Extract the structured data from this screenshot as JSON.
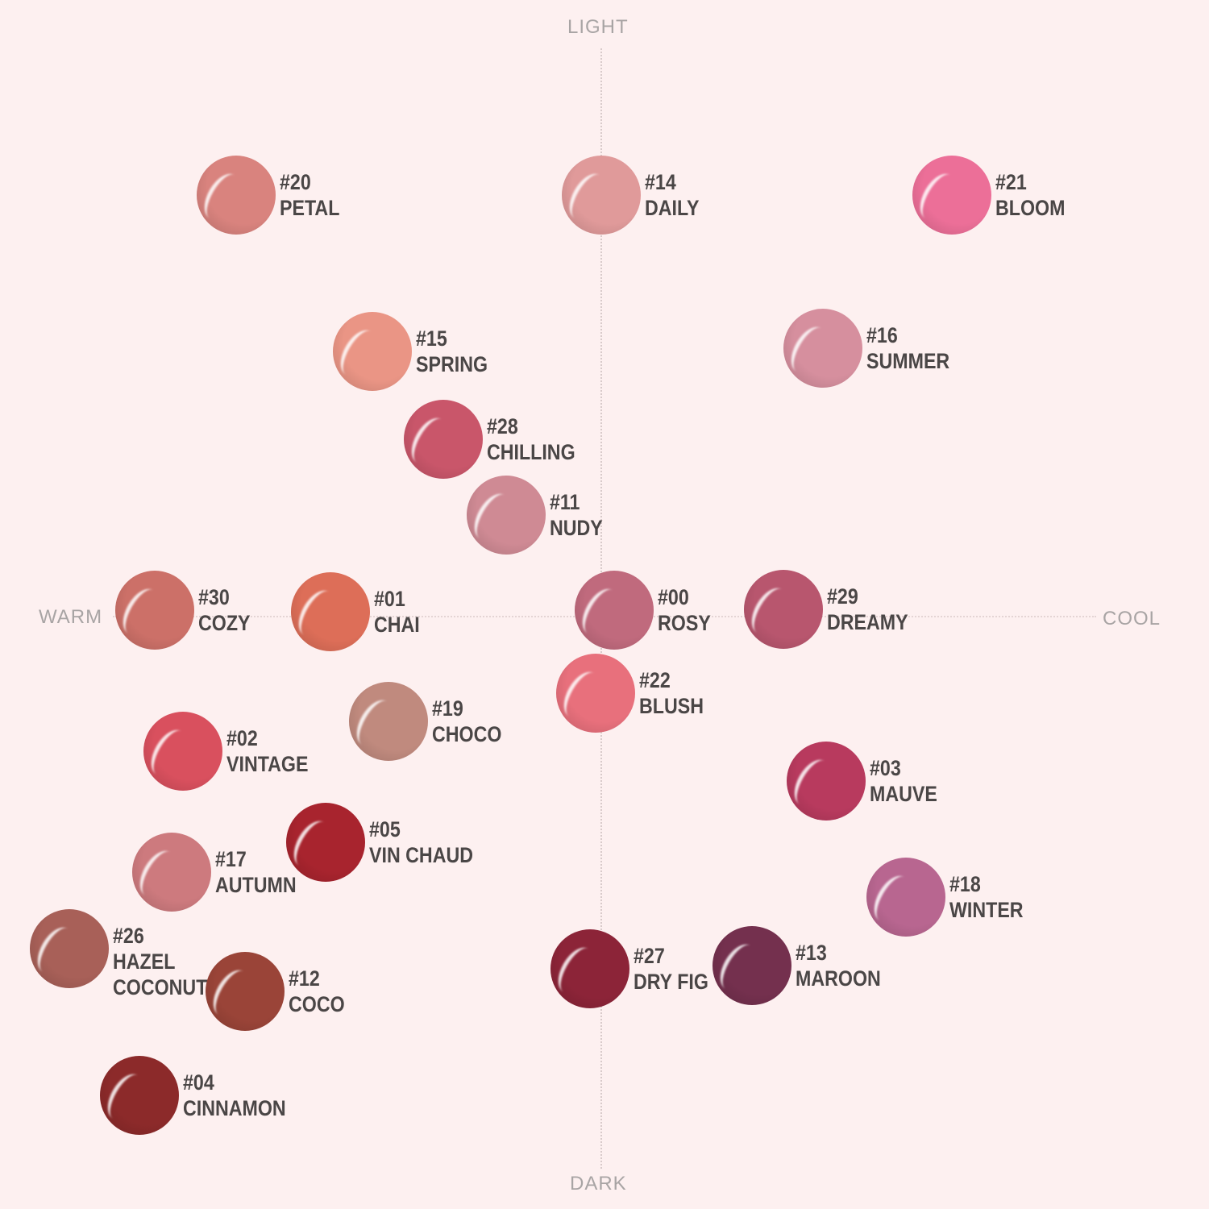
{
  "axes": {
    "top": "LIGHT",
    "bottom": "DARK",
    "left": "WARM",
    "right": "COOL"
  },
  "shades": [
    {
      "code": "#20",
      "name": [
        "PETAL"
      ],
      "color": "#d9837e"
    },
    {
      "code": "#14",
      "name": [
        "DAILY"
      ],
      "color": "#e09a9a"
    },
    {
      "code": "#21",
      "name": [
        "BLOOM"
      ],
      "color": "#ec6f98"
    },
    {
      "code": "#15",
      "name": [
        "SPRING"
      ],
      "color": "#ea9585"
    },
    {
      "code": "#16",
      "name": [
        "SUMMER"
      ],
      "color": "#d68f9e"
    },
    {
      "code": "#28",
      "name": [
        "CHILLING"
      ],
      "color": "#c9566a"
    },
    {
      "code": "#11",
      "name": [
        "NUDY"
      ],
      "color": "#cf8a94"
    },
    {
      "code": "#30",
      "name": [
        "COZY"
      ],
      "color": "#cc7068"
    },
    {
      "code": "#01",
      "name": [
        "CHAI"
      ],
      "color": "#dd6e58"
    },
    {
      "code": "#00",
      "name": [
        "ROSY"
      ],
      "color": "#c06a7d"
    },
    {
      "code": "#29",
      "name": [
        "DREAMY"
      ],
      "color": "#b8566e"
    },
    {
      "code": "#22",
      "name": [
        "BLUSH"
      ],
      "color": "#e8707c"
    },
    {
      "code": "#19",
      "name": [
        "CHOCO"
      ],
      "color": "#c08a7e"
    },
    {
      "code": "#02",
      "name": [
        "VINTAGE"
      ],
      "color": "#d9505e"
    },
    {
      "code": "#03",
      "name": [
        "MAUVE"
      ],
      "color": "#b83a5e"
    },
    {
      "code": "#05",
      "name": [
        "VIN CHAUD"
      ],
      "color": "#a8242e"
    },
    {
      "code": "#17",
      "name": [
        "AUTUMN"
      ],
      "color": "#cd7a7e"
    },
    {
      "code": "#18",
      "name": [
        "WINTER"
      ],
      "color": "#b86690"
    },
    {
      "code": "#26",
      "name": [
        "HAZEL",
        "COCONUT"
      ],
      "color": "#a86058"
    },
    {
      "code": "#27",
      "name": [
        "DRY FIG"
      ],
      "color": "#8c2438"
    },
    {
      "code": "#13",
      "name": [
        "MAROON"
      ],
      "color": "#74304e"
    },
    {
      "code": "#12",
      "name": [
        "COCO"
      ],
      "color": "#9a4438"
    },
    {
      "code": "#04",
      "name": [
        "CINNAMON"
      ],
      "color": "#8c2a2a"
    }
  ]
}
